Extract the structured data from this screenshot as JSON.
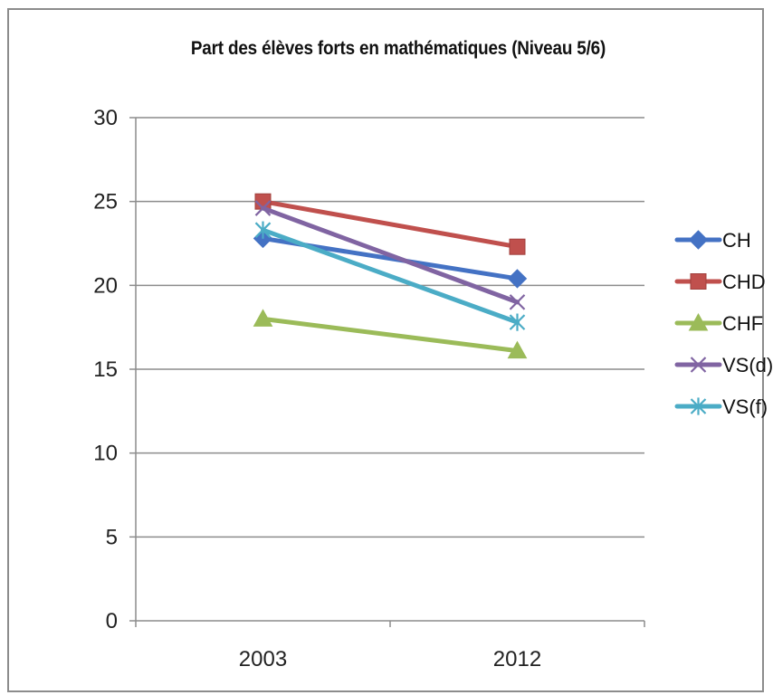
{
  "chart_data": {
    "type": "line",
    "title": "Part des élèves forts en mathématiques (Niveau 5/6)",
    "xlabel": "",
    "ylabel": "",
    "categories": [
      "2003",
      "2012"
    ],
    "ylim": [
      0,
      30
    ],
    "yticks": [
      0,
      5,
      10,
      15,
      20,
      25,
      30
    ],
    "grid": true,
    "legend_position": "right",
    "series": [
      {
        "name": "CH",
        "values": [
          22.8,
          20.4
        ],
        "color": "#4472C4",
        "marker": "diamond"
      },
      {
        "name": "CHD",
        "values": [
          25.0,
          22.3
        ],
        "color": "#C0504D",
        "marker": "square"
      },
      {
        "name": "CHF",
        "values": [
          18.0,
          16.1
        ],
        "color": "#9BBB59",
        "marker": "triangle"
      },
      {
        "name": "VS(d)",
        "values": [
          24.6,
          19.0
        ],
        "color": "#8064A2",
        "marker": "x"
      },
      {
        "name": "VS(f)",
        "values": [
          23.3,
          17.8
        ],
        "color": "#4BACC6",
        "marker": "star"
      }
    ]
  }
}
